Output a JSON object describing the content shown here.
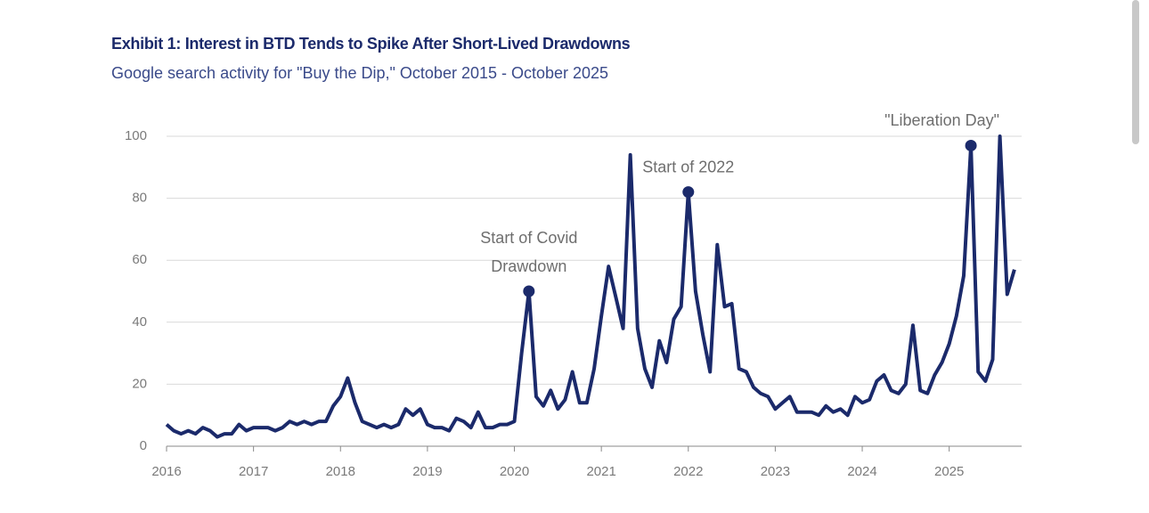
{
  "chart_data": {
    "type": "line",
    "title": "Exhibit 1: Interest in BTD Tends to Spike After Short-Lived Drawdowns",
    "subtitle": "Google search activity for \"Buy the Dip,\" October 2015 - October 2025",
    "x": [
      2016,
      2016.083,
      2016.167,
      2016.25,
      2016.333,
      2016.417,
      2016.5,
      2016.583,
      2016.667,
      2016.75,
      2016.833,
      2016.917,
      2017,
      2017.083,
      2017.167,
      2017.25,
      2017.333,
      2017.417,
      2017.5,
      2017.583,
      2017.667,
      2017.75,
      2017.833,
      2017.917,
      2018,
      2018.083,
      2018.167,
      2018.25,
      2018.333,
      2018.417,
      2018.5,
      2018.583,
      2018.667,
      2018.75,
      2018.833,
      2018.917,
      2019,
      2019.083,
      2019.167,
      2019.25,
      2019.333,
      2019.417,
      2019.5,
      2019.583,
      2019.667,
      2019.75,
      2019.833,
      2019.917,
      2020,
      2020.083,
      2020.167,
      2020.25,
      2020.333,
      2020.417,
      2020.5,
      2020.583,
      2020.667,
      2020.75,
      2020.833,
      2020.917,
      2021,
      2021.083,
      2021.167,
      2021.25,
      2021.333,
      2021.417,
      2021.5,
      2021.583,
      2021.667,
      2021.75,
      2021.833,
      2021.917,
      2022,
      2022.083,
      2022.167,
      2022.25,
      2022.333,
      2022.417,
      2022.5,
      2022.583,
      2022.667,
      2022.75,
      2022.833,
      2022.917,
      2023,
      2023.083,
      2023.167,
      2023.25,
      2023.333,
      2023.417,
      2023.5,
      2023.583,
      2023.667,
      2023.75,
      2023.833,
      2023.917,
      2024,
      2024.083,
      2024.167,
      2024.25,
      2024.333,
      2024.417,
      2024.5,
      2024.583,
      2024.667,
      2024.75,
      2024.833,
      2024.917,
      2025,
      2025.083,
      2025.167,
      2025.25,
      2025.333,
      2025.417,
      2025.5,
      2025.583,
      2025.667,
      2025.75
    ],
    "series": [
      {
        "color": "#1b2a6b",
        "values": [
          7,
          5,
          4,
          5,
          4,
          6,
          5,
          3,
          4,
          4,
          7,
          5,
          6,
          6,
          6,
          5,
          6,
          8,
          7,
          8,
          7,
          8,
          8,
          13,
          16,
          22,
          14,
          8,
          7,
          6,
          7,
          6,
          7,
          12,
          10,
          12,
          7,
          6,
          6,
          5,
          9,
          8,
          6,
          11,
          6,
          6,
          7,
          7,
          8,
          30,
          50,
          16,
          13,
          18,
          12,
          15,
          24,
          14,
          14,
          25,
          42,
          58,
          48,
          38,
          94,
          38,
          25,
          19,
          34,
          27,
          41,
          45,
          82,
          50,
          36,
          24,
          65,
          45,
          46,
          25,
          24,
          19,
          17,
          16,
          12,
          14,
          16,
          11,
          11,
          11,
          10,
          13,
          11,
          12,
          10,
          16,
          14,
          15,
          21,
          23,
          18,
          17,
          20,
          39,
          18,
          17,
          23,
          27,
          33,
          42,
          55,
          97,
          24,
          21,
          28,
          100,
          49,
          57
        ]
      }
    ],
    "xlim": [
      2016,
      2025.833
    ],
    "ylim": [
      0,
      100
    ],
    "xticks": [
      2016,
      2017,
      2018,
      2019,
      2020,
      2021,
      2022,
      2023,
      2024,
      2025
    ],
    "yticks": [
      0,
      20,
      40,
      60,
      80,
      100
    ],
    "grid": true,
    "annotations": [
      {
        "text": [
          "Start of Covid",
          "Drawdown"
        ],
        "x": 2020.167
      },
      {
        "text": [
          "Start of 2022"
        ],
        "x": 2022
      },
      {
        "text": [
          "\"Liberation Day\""
        ],
        "x": 2025.25
      }
    ]
  }
}
